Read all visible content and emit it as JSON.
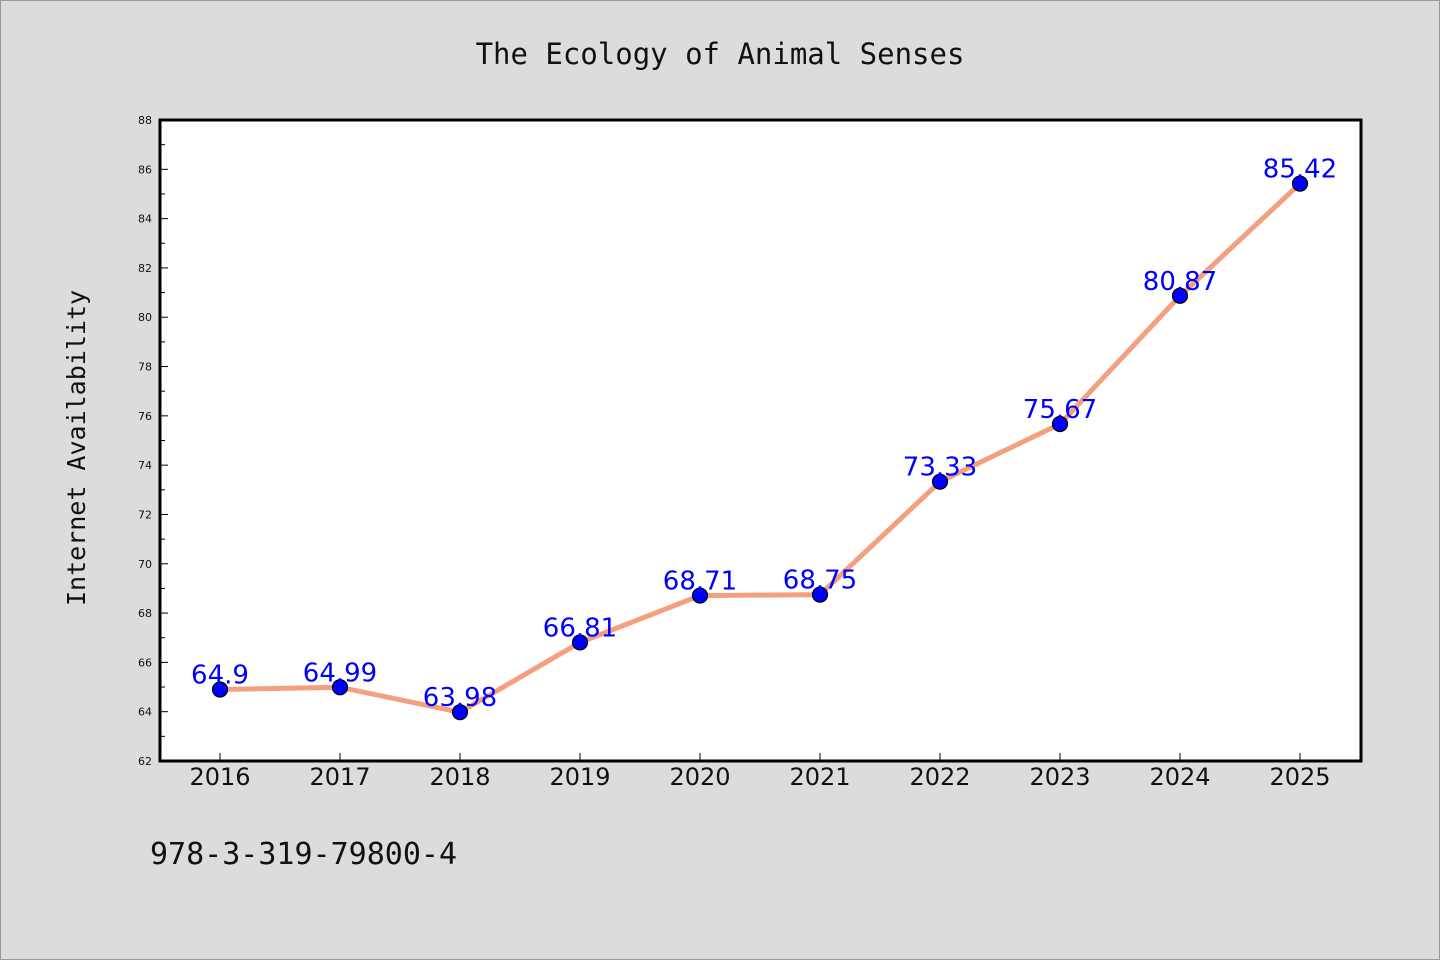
{
  "colors": {
    "background": "#dcdcdc",
    "plot_background": "#ffffff",
    "line": "#f4a07e",
    "marker": "#0000ff",
    "label": "#0000ff"
  },
  "footer": {
    "code": "978-3-319-79800-4"
  },
  "chart_data": {
    "type": "line",
    "title": "The Ecology of Animal Senses",
    "xlabel": "",
    "ylabel": "Internet Availability",
    "x": [
      "2016",
      "2017",
      "2018",
      "2019",
      "2020",
      "2021",
      "2022",
      "2023",
      "2024",
      "2025"
    ],
    "series": [
      {
        "values": [
          64.9,
          64.99,
          63.98,
          66.81,
          68.71,
          68.75,
          73.33,
          75.67,
          80.87,
          85.42
        ],
        "labels": [
          "64.9",
          "64.99",
          "63.98",
          "66.81",
          "68.71",
          "68.75",
          "73.33",
          "75.67",
          "80.87",
          "85.42"
        ]
      }
    ],
    "ylim": [
      62,
      88
    ],
    "yticks": [
      "62",
      "64",
      "66",
      "68",
      "70",
      "72",
      "74",
      "76",
      "78",
      "80",
      "82",
      "84",
      "86",
      "88"
    ],
    "grid": false,
    "marker": "circle"
  }
}
